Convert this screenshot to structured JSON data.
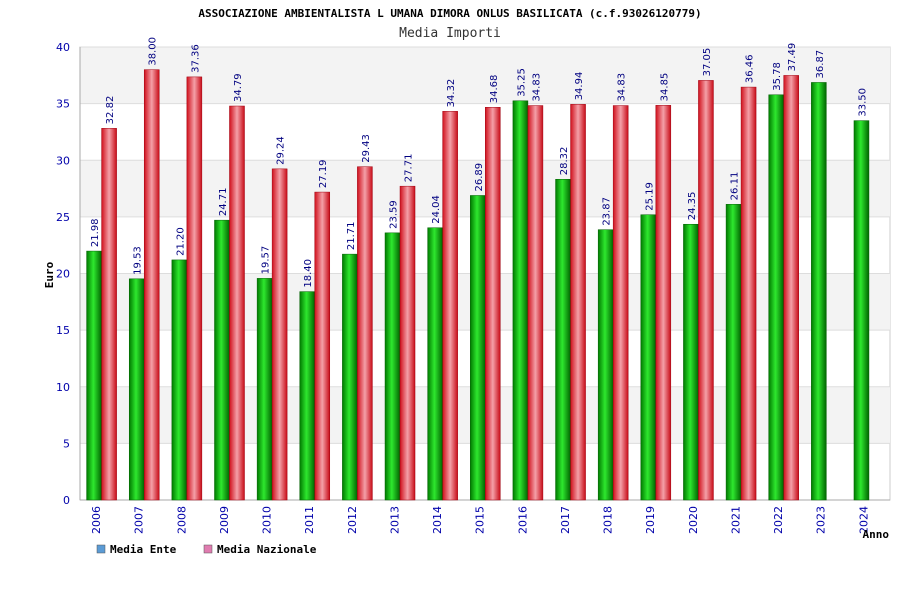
{
  "chart_data": {
    "type": "bar",
    "title": "ASSOCIAZIONE AMBIENTALISTA L UMANA DIMORA ONLUS BASILICATA (c.f.93026120779)",
    "subtitle": "Media Importi",
    "xlabel": "Anno",
    "ylabel": "Euro",
    "ylim": [
      0,
      40
    ],
    "yticks": [
      0,
      5,
      10,
      15,
      20,
      25,
      30,
      35,
      40
    ],
    "grid": "horizontal bands",
    "legend_position": "bottom-left",
    "categories": [
      "2006",
      "2007",
      "2008",
      "2009",
      "2010",
      "2011",
      "2012",
      "2013",
      "2014",
      "2015",
      "2016",
      "2017",
      "2018",
      "2019",
      "2020",
      "2021",
      "2022",
      "2023",
      "2024"
    ],
    "series": [
      {
        "name": "Media Ente",
        "legend_color": "#5b9bd5",
        "bar_color": "#00b000",
        "values": [
          21.98,
          19.53,
          21.2,
          24.71,
          19.57,
          18.4,
          21.71,
          23.59,
          24.04,
          26.89,
          35.25,
          28.32,
          23.87,
          25.19,
          24.35,
          26.11,
          35.78,
          36.87,
          33.5
        ],
        "labels": [
          "21.98",
          "19.53",
          "21.20",
          "24.71",
          "19.57",
          "18.40",
          "21.71",
          "23.59",
          "24.04",
          "26.89",
          "35.25",
          "28.32",
          "23.87",
          "25.19",
          "24.35",
          "26.11",
          "35.78",
          "36.87",
          "33.50"
        ]
      },
      {
        "name": "Media Nazionale",
        "legend_color": "#e07cb0",
        "bar_color": "#e8303a",
        "values": [
          32.82,
          38.0,
          37.36,
          34.79,
          29.24,
          27.19,
          29.43,
          27.71,
          34.32,
          34.68,
          34.83,
          34.94,
          34.83,
          34.85,
          37.05,
          36.46,
          37.49,
          null,
          null
        ],
        "labels": [
          "32.82",
          "38.00",
          "37.36",
          "34.79",
          "29.24",
          "27.19",
          "29.43",
          "27.71",
          "34.32",
          "34.68",
          "34.83",
          "34.94",
          "34.83",
          "34.85",
          "37.05",
          "36.46",
          "37.49",
          "",
          ""
        ]
      }
    ]
  }
}
